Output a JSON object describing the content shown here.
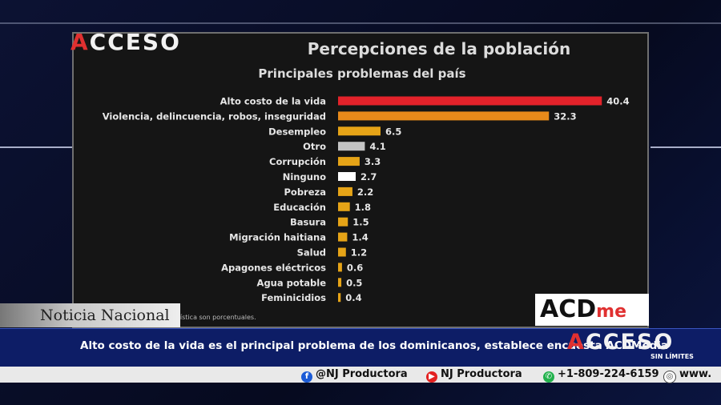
{
  "overlay": {
    "logo_top": "ACCESO",
    "brand": "ACD",
    "brand_suffix": "me",
    "ticker_label": "Noticia Nacional",
    "headline": "Alto costo de la vida es el principal problema de los dominicanos, establece encuesta ACDMedia",
    "logo_bottom": "ACCESO",
    "tagline": "SIN LÍMITES",
    "social": {
      "facebook": "@NJ Productora",
      "youtube": "NJ Productora",
      "whatsapp": "+1-809-224-6159",
      "web": "www."
    }
  },
  "colors": {
    "red_bar": "#e3222a",
    "orange_bar": "#e88a1a",
    "gold_bar": "#e6a417",
    "gray_bar": "#c4c4c4",
    "white_bar": "#ffffff",
    "headline_bg": "#0d1d66"
  },
  "chart_data": {
    "type": "bar",
    "orientation": "horizontal",
    "title": "Percepciones de la población",
    "subtitle": "Principales problemas del país",
    "footnote": "...stadística son porcentuales.",
    "categories": [
      "Alto costo de la vida",
      "Violencia, delincuencia, robos, inseguridad",
      "Desempleo",
      "Otro",
      "Corrupción",
      "Ninguno",
      "Pobreza",
      "Educación",
      "Basura",
      "Migración haitiana",
      "Salud",
      "Apagones eléctricos",
      "Agua potable",
      "Feminicidios"
    ],
    "values": [
      40.4,
      32.3,
      6.5,
      4.1,
      3.3,
      2.7,
      2.2,
      1.8,
      1.5,
      1.4,
      1.2,
      0.6,
      0.5,
      0.4
    ],
    "bar_colors": [
      "#e3222a",
      "#e88a1a",
      "#e6a417",
      "#c4c4c4",
      "#e6a417",
      "#ffffff",
      "#e6a417",
      "#e6a417",
      "#e6a417",
      "#e6a417",
      "#e6a417",
      "#e6a417",
      "#e6a417",
      "#e6a417"
    ],
    "xlim": [
      0,
      45
    ],
    "grid": false,
    "legend": "none"
  }
}
